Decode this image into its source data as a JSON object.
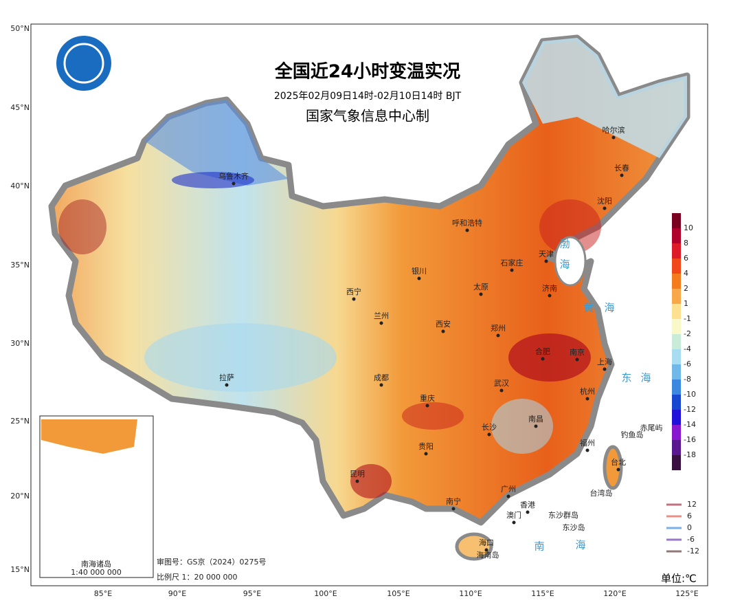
{
  "header": {
    "title": "全国近24小时变温实况",
    "subtitle": "2025年02月09日14时-02月10日14时  BJT",
    "agency": "国家气象信息中心制"
  },
  "lat_labels": [
    "50°N",
    "45°N",
    "40°N",
    "35°N",
    "30°N",
    "25°N",
    "20°N",
    "15°N"
  ],
  "lon_labels": [
    "85°E",
    "90°E",
    "95°E",
    "100°E",
    "105°E",
    "110°E",
    "115°E",
    "120°E",
    "125°E"
  ],
  "cities": [
    "哈尔滨",
    "长春",
    "沈阳",
    "呼和浩特",
    "天津",
    "石家庄",
    "银川",
    "太原",
    "济南",
    "西宁",
    "兰州",
    "郑州",
    "西安",
    "合肥",
    "南京",
    "上海",
    "拉萨",
    "成都",
    "武汉",
    "杭州",
    "重庆",
    "长沙",
    "南昌",
    "贵阳",
    "福州",
    "台北",
    "昆明",
    "南宁",
    "广州",
    "香港",
    "澳门",
    "海口",
    "乌鲁木齐"
  ],
  "seas": [
    "渤",
    "海",
    "黄",
    "海",
    "东",
    "海",
    "南",
    "海"
  ],
  "islands": [
    "钓鱼岛",
    "赤尾屿",
    "台湾岛",
    "东沙群岛",
    "东沙岛",
    "海南岛"
  ],
  "inset": {
    "title": "南海诸岛",
    "scale": "1:40 000 000"
  },
  "footer": {
    "approval": "审图号：GS京（2024）0275号",
    "scale": "比例尺 1：20 000 000",
    "unit": "单位:℃"
  },
  "color_scale": {
    "labels": [
      "10",
      "8",
      "6",
      "4",
      "2",
      "1",
      "-1",
      "-2",
      "-4",
      "-6",
      "-8",
      "-10",
      "-12",
      "-14",
      "-16",
      "-18"
    ],
    "colors": [
      "#7a0020",
      "#b0002c",
      "#dc1a28",
      "#f04818",
      "#f47c1c",
      "#f8a848",
      "#fde090",
      "#f8f8c8",
      "#c8ecd8",
      "#a8dcf0",
      "#70b8e8",
      "#3a88e0",
      "#1848d0",
      "#2010d8",
      "#8818d0",
      "#5a1890",
      "#3a1040"
    ]
  },
  "contour_legend": {
    "labels": [
      "12",
      "6",
      "0",
      "-6",
      "-12"
    ],
    "colors": [
      "#c07080",
      "#e89088",
      "#78b0e8",
      "#9878c8",
      "#907878"
    ]
  }
}
